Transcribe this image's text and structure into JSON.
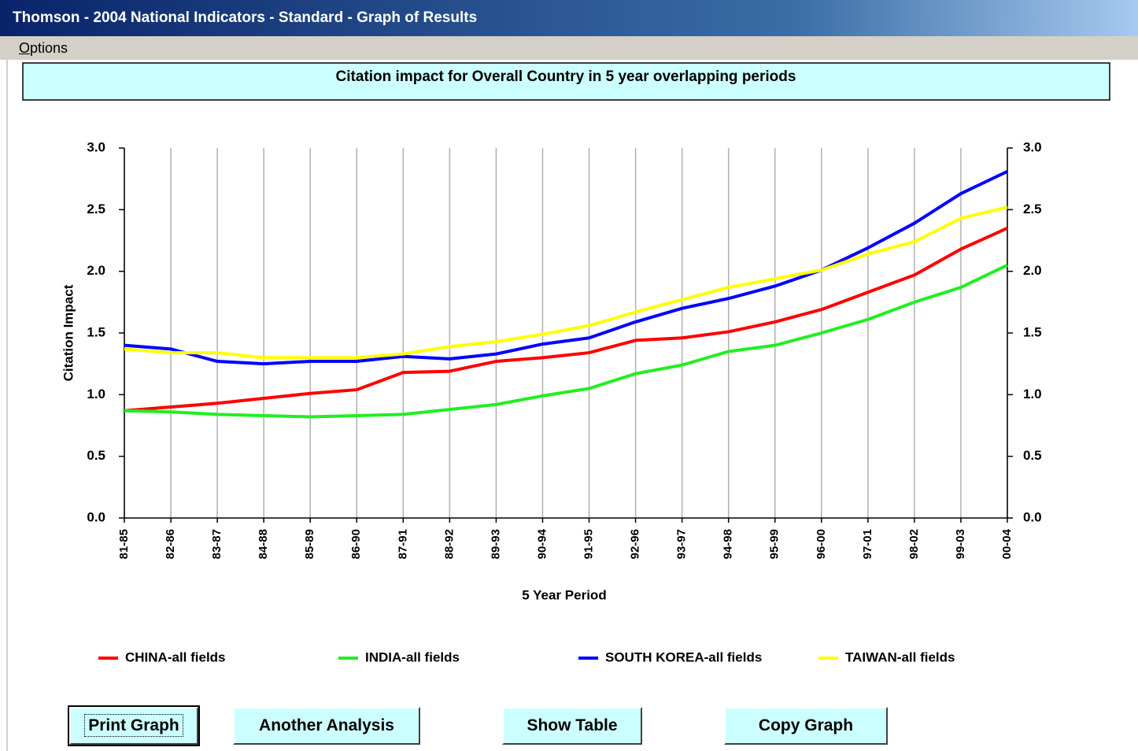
{
  "window": {
    "title": "Thomson - 2004 National Indicators - Standard - Graph of Results",
    "menu": [
      "Options"
    ]
  },
  "chart_data": {
    "type": "line",
    "title": "Citation impact for Overall Country in 5 year overlapping periods",
    "xlabel": "5 Year Period",
    "ylabel": "Citation Impact",
    "categories": [
      "81-85",
      "82-86",
      "83-87",
      "84-88",
      "85-89",
      "86-90",
      "87-91",
      "88-92",
      "89-93",
      "90-94",
      "91-95",
      "92-96",
      "93-97",
      "94-98",
      "95-99",
      "96-00",
      "97-01",
      "98-02",
      "99-03",
      "00-04"
    ],
    "series": [
      {
        "name": "CHINA-all fields",
        "color": "#ff0000",
        "values": [
          0.87,
          0.9,
          0.93,
          0.97,
          1.01,
          1.04,
          1.18,
          1.19,
          1.27,
          1.3,
          1.34,
          1.44,
          1.46,
          1.51,
          1.59,
          1.69,
          1.83,
          1.97,
          2.18,
          2.35
        ]
      },
      {
        "name": "INDIA-all fields",
        "color": "#22ee22",
        "values": [
          0.87,
          0.86,
          0.84,
          0.83,
          0.82,
          0.83,
          0.84,
          0.88,
          0.92,
          0.99,
          1.05,
          1.17,
          1.24,
          1.35,
          1.4,
          1.5,
          1.61,
          1.75,
          1.87,
          2.05
        ]
      },
      {
        "name": "SOUTH KOREA-all fields",
        "color": "#0000ff",
        "values": [
          1.4,
          1.37,
          1.27,
          1.25,
          1.27,
          1.27,
          1.31,
          1.29,
          1.33,
          1.41,
          1.46,
          1.59,
          1.7,
          1.78,
          1.88,
          2.01,
          2.19,
          2.39,
          2.63,
          2.81
        ]
      },
      {
        "name": "TAIWAN-all fields",
        "color": "#ffff00",
        "values": [
          1.37,
          1.34,
          1.34,
          1.3,
          1.3,
          1.3,
          1.33,
          1.39,
          1.43,
          1.49,
          1.56,
          1.67,
          1.77,
          1.87,
          1.94,
          2.01,
          2.14,
          2.24,
          2.43,
          2.52
        ]
      }
    ],
    "ylim": [
      0,
      3
    ],
    "yticks": [
      {
        "value": 0,
        "label": "0.0"
      },
      0.5,
      {
        "value": 1,
        "label": "1.0"
      },
      1.5,
      {
        "value": 2,
        "label": "2.0"
      },
      2.5,
      {
        "value": 3,
        "label": "3.0"
      }
    ],
    "y2lim": [
      0,
      3
    ],
    "y2ticks": [
      {
        "value": 0,
        "label": "0.0"
      },
      0.5,
      {
        "value": 1,
        "label": "1.0"
      },
      1.5,
      {
        "value": 2,
        "label": "2.0"
      },
      2.5,
      {
        "value": 3,
        "label": "3.0"
      }
    ],
    "grid": "x",
    "legend": "bottom"
  },
  "buttons": [
    "Print Graph",
    "Another Analysis",
    "Show Table",
    "Copy Graph"
  ]
}
